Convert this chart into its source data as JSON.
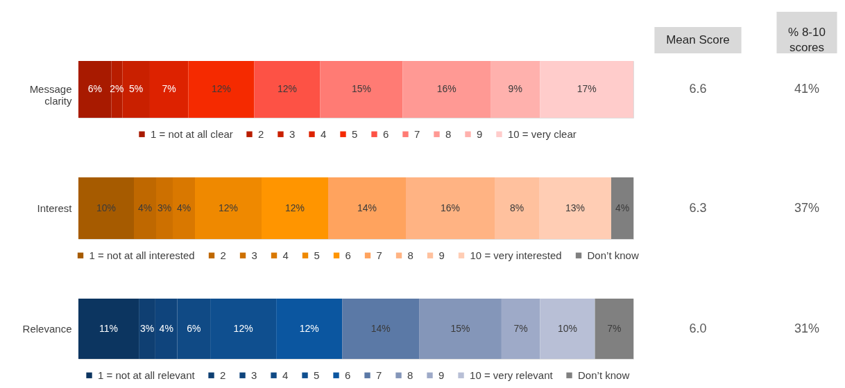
{
  "chart_data": [
    {
      "type": "other",
      "annotations": [
        "Mean Score",
        "% 8-10 scores"
      ]
    },
    {
      "type": "bar",
      "orientation": "horizontal",
      "stacked": true,
      "categories": [
        "Message clarity"
      ],
      "xlim": [
        0,
        101
      ],
      "tick_labels": "y",
      "legend": "bottom",
      "annotations": [
        "6.6",
        "41%"
      ],
      "series": [
        {
          "name": "1 = not at all clear",
          "color": "#a81a00",
          "values": [
            6
          ],
          "value_labels": [
            "6%"
          ]
        },
        {
          "name": "2",
          "color": "#b81d00",
          "values": [
            2
          ],
          "value_labels": [
            "2%"
          ]
        },
        {
          "name": "3",
          "color": "#c92000",
          "values": [
            5
          ],
          "value_labels": [
            "5%"
          ]
        },
        {
          "name": "4",
          "color": "#dd2200",
          "values": [
            7
          ],
          "value_labels": [
            "7%"
          ]
        },
        {
          "name": "5",
          "color": "#f52a00",
          "values": [
            12
          ],
          "value_labels": [
            "12%"
          ]
        },
        {
          "name": "6",
          "color": "#fd5245",
          "values": [
            12
          ],
          "value_labels": [
            "12%"
          ]
        },
        {
          "name": "7",
          "color": "#ff7b74",
          "values": [
            15
          ],
          "value_labels": [
            "15%"
          ]
        },
        {
          "name": "8",
          "color": "#ff9994",
          "values": [
            16
          ],
          "value_labels": [
            "16%"
          ]
        },
        {
          "name": "9",
          "color": "#ffb1ad",
          "values": [
            9
          ],
          "value_labels": [
            "9%"
          ]
        },
        {
          "name": "10 = very clear",
          "color": "#ffcccb",
          "values": [
            17
          ],
          "value_labels": [
            "17%"
          ]
        }
      ]
    },
    {
      "type": "bar",
      "orientation": "horizontal",
      "stacked": true,
      "categories": [
        "Interest"
      ],
      "xlim": [
        0,
        100
      ],
      "tick_labels": "y",
      "legend": "bottom",
      "annotations": [
        "6.3",
        "37%"
      ],
      "series": [
        {
          "name": "1 = not at all interested",
          "color": "#a65b00",
          "values": [
            10
          ],
          "value_labels": [
            "10%"
          ]
        },
        {
          "name": "2",
          "color": "#bf6800",
          "values": [
            4
          ],
          "value_labels": [
            "4%"
          ]
        },
        {
          "name": "3",
          "color": "#cd7000",
          "values": [
            3
          ],
          "value_labels": [
            "3%"
          ]
        },
        {
          "name": "4",
          "color": "#d97800",
          "values": [
            4
          ],
          "value_labels": [
            "4%"
          ]
        },
        {
          "name": "5",
          "color": "#ef8900",
          "values": [
            12
          ],
          "value_labels": [
            "12%"
          ]
        },
        {
          "name": "6",
          "color": "#ff9500",
          "values": [
            12
          ],
          "value_labels": [
            "12%"
          ]
        },
        {
          "name": "7",
          "color": "#ffa35e",
          "values": [
            14
          ],
          "value_labels": [
            "14%"
          ]
        },
        {
          "name": "8",
          "color": "#ffb383",
          "values": [
            16
          ],
          "value_labels": [
            "16%"
          ]
        },
        {
          "name": "9",
          "color": "#ffc19e",
          "values": [
            8
          ],
          "value_labels": [
            "8%"
          ]
        },
        {
          "name": "10 = very interested",
          "color": "#ffcdb4",
          "values": [
            13
          ],
          "value_labels": [
            "13%"
          ]
        },
        {
          "name": "Don’t know",
          "color": "#7f7f7f",
          "values": [
            4
          ],
          "value_labels": [
            "4%"
          ]
        }
      ]
    },
    {
      "type": "bar",
      "orientation": "horizontal",
      "stacked": true,
      "categories": [
        "Relevance"
      ],
      "xlim": [
        0,
        101
      ],
      "tick_labels": "y",
      "legend": "bottom",
      "annotations": [
        "6.0",
        "31%"
      ],
      "series": [
        {
          "name": "1 = not at all relevant",
          "color": "#0c3560",
          "values": [
            11
          ],
          "value_labels": [
            "11%"
          ]
        },
        {
          "name": "2",
          "color": "#0f3f72",
          "values": [
            3
          ],
          "value_labels": [
            "3%"
          ]
        },
        {
          "name": "3",
          "color": "#0f447c",
          "values": [
            4
          ],
          "value_labels": [
            "4%"
          ]
        },
        {
          "name": "4",
          "color": "#104a85",
          "values": [
            6
          ],
          "value_labels": [
            "6%"
          ]
        },
        {
          "name": "5",
          "color": "#0f4f8f",
          "values": [
            12
          ],
          "value_labels": [
            "12%"
          ]
        },
        {
          "name": "6",
          "color": "#0b56a0",
          "values": [
            12
          ],
          "value_labels": [
            "12%"
          ]
        },
        {
          "name": "7",
          "color": "#5b79a6",
          "values": [
            14
          ],
          "value_labels": [
            "14%"
          ]
        },
        {
          "name": "8",
          "color": "#8496b9",
          "values": [
            15
          ],
          "value_labels": [
            "15%"
          ]
        },
        {
          "name": "9",
          "color": "#9eaac8",
          "values": [
            7
          ],
          "value_labels": [
            "7%"
          ]
        },
        {
          "name": "10 = very relevant",
          "color": "#b8bfd6",
          "values": [
            10
          ],
          "value_labels": [
            "10%"
          ]
        },
        {
          "name": "Don’t know",
          "color": "#808080",
          "values": [
            7
          ],
          "value_labels": [
            "7%"
          ]
        }
      ]
    }
  ]
}
